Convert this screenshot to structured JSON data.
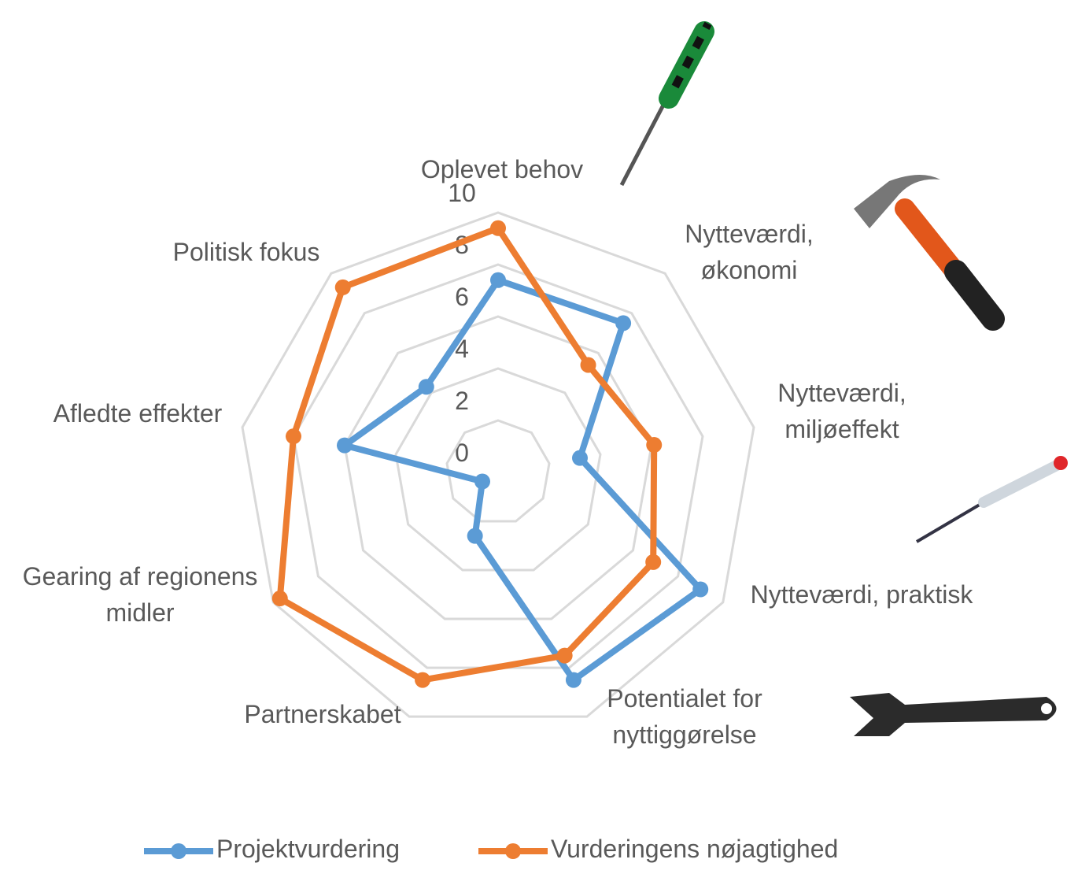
{
  "chart_data": {
    "type": "radar",
    "categories": [
      "Oplevet behov",
      "Nytteværdi, økonomi",
      "Nytteværdi, miljøeffekt",
      "Nytteværdi, praktisk",
      "Potentialet for nyttiggørelse",
      "Partnerskabet",
      "Gearing af regionens midler",
      "Afledte effekter",
      "Politisk fokus"
    ],
    "series": [
      {
        "name": "Projektvurdering",
        "color": "#5b9bd5",
        "values": [
          7.4,
          7.5,
          3.2,
          9.0,
          8.5,
          2.6,
          0.7,
          6.0,
          4.3
        ]
      },
      {
        "name": "Vurderingens nøjagtighed",
        "color": "#ed7d31",
        "values": [
          9.4,
          5.4,
          6.1,
          6.9,
          7.5,
          8.5,
          9.7,
          8.0,
          9.3
        ]
      }
    ],
    "ylim": [
      0,
      10
    ],
    "yticks": [
      0,
      2,
      4,
      6,
      8,
      10
    ],
    "grid": true,
    "legend": "bottom"
  }
}
